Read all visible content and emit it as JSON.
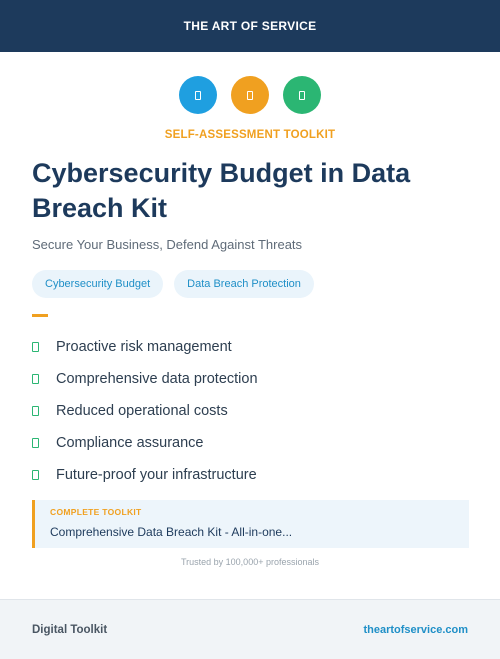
{
  "header": {
    "brand": "THE ART OF SERVICE"
  },
  "icons": [
    {
      "name": "document-icon",
      "color": "#1f9fe0"
    },
    {
      "name": "document-icon",
      "color": "#f0a020"
    },
    {
      "name": "document-icon",
      "color": "#2bb673"
    }
  ],
  "eyebrow": "SELF-ASSESSMENT TOOLKIT",
  "title": "Cybersecurity Budget in Data Breach Kit",
  "subtitle": "Secure Your Business, Defend Against Threats",
  "tags": [
    "Cybersecurity Budget",
    "Data Breach Protection"
  ],
  "features": [
    "Proactive risk management",
    "Comprehensive data protection",
    "Reduced operational costs",
    "Compliance assurance",
    "Future-proof your infrastructure"
  ],
  "callout": {
    "kicker": "COMPLETE TOOLKIT",
    "text": "Comprehensive Data Breach Kit - All-in-one..."
  },
  "trusted": "Trusted by 100,000+ professionals",
  "footer": {
    "left": "Digital Toolkit",
    "right": "theartofservice.com"
  },
  "colors": {
    "header_bg": "#1d3a5c",
    "accent_orange": "#f0a020",
    "accent_blue": "#1f8fc7",
    "accent_green": "#2bb673"
  }
}
